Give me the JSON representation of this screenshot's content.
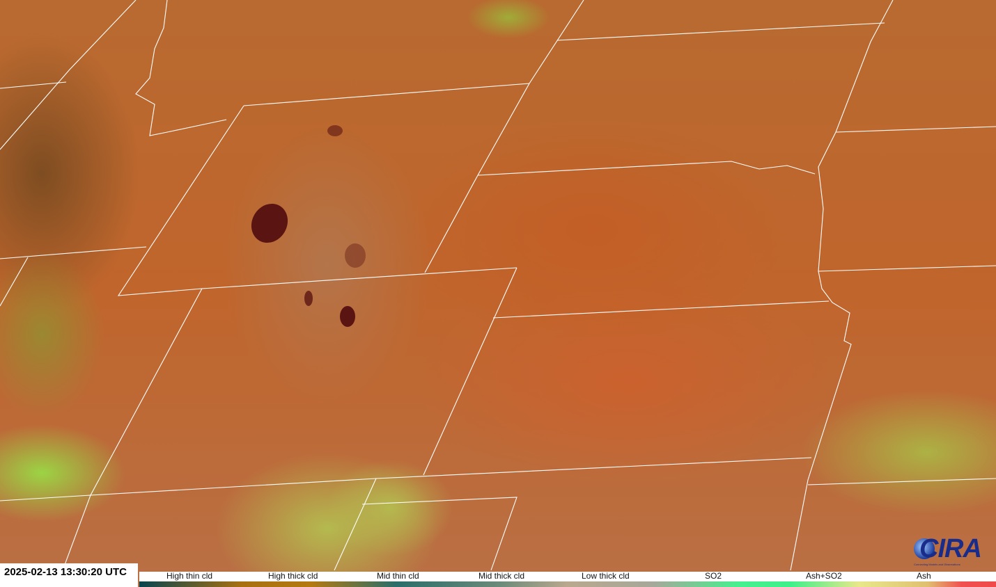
{
  "timestamp": "2025-02-13 13:30:20 UTC",
  "legend": {
    "labels": [
      "High thin cld",
      "High thick cld",
      "Mid thin cld",
      "Mid thick cld",
      "Low thick cld",
      "SO2",
      "Ash+SO2",
      "Ash"
    ]
  },
  "logo": {
    "name": "CIRA",
    "tagline": "Connecting Models and Observations"
  }
}
